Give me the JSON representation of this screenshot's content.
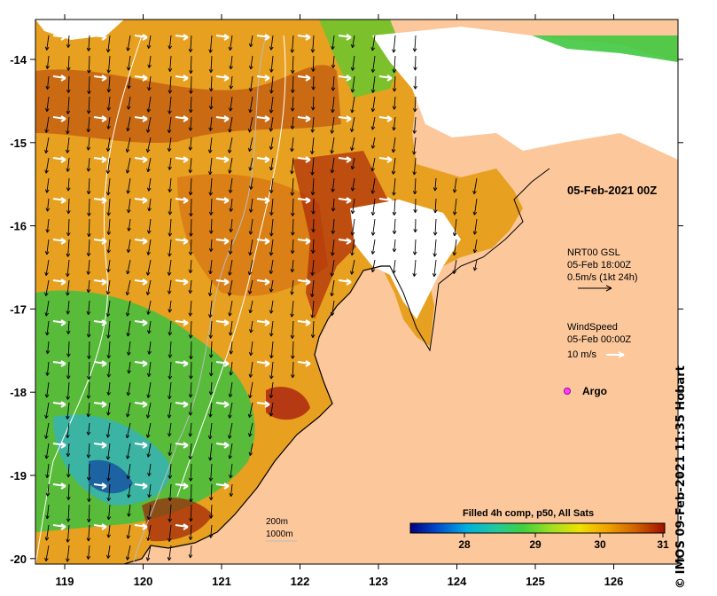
{
  "map": {
    "lon_ticks": [
      "119",
      "120",
      "121",
      "122",
      "123",
      "124",
      "125",
      "126"
    ],
    "lat_ticks": [
      "-14",
      "-15",
      "-16",
      "-17",
      "-18",
      "-19",
      "-20"
    ],
    "colors": {
      "land": "#fbc79b",
      "cloud": "#ffffff",
      "coast": "#000000"
    }
  },
  "labels": {
    "datetime": "05-Feb-2021 00Z",
    "gsl_title": "NRT00 GSL",
    "gsl_date": "05-Feb 18:00Z",
    "gsl_scale": "0.5m/s (1kt 24h)",
    "wind_title": "WindSpeed",
    "wind_date": "05-Feb 00:00Z",
    "wind_scale": "10 m/s",
    "argo": "Argo",
    "contour_200": "200m",
    "contour_1000": "1000m"
  },
  "colorbar": {
    "title": "Filled 4h comp, p50, All Sats",
    "ticks": [
      "28",
      "29",
      "30",
      "31"
    ],
    "stops": [
      "#000080",
      "#0050d0",
      "#00b0e0",
      "#20c8a0",
      "#40d040",
      "#a0e020",
      "#f0e000",
      "#f0a000",
      "#d06000",
      "#a01000"
    ]
  },
  "credit": "IMOS 09-Feb-2021 11:35 Hobart",
  "credit_symbol": "©"
}
